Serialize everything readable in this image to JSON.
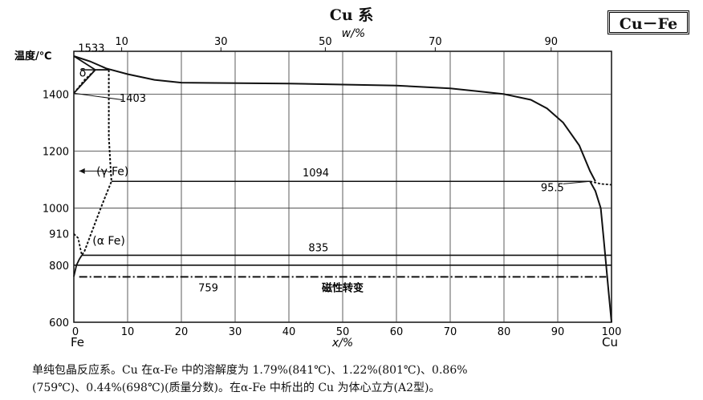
{
  "header": {
    "system_title": "Cu 系",
    "badge": "Cu－Fe"
  },
  "chart_data": {
    "type": "line",
    "top_axis": {
      "label": "w/%",
      "ticks": [
        10,
        30,
        50,
        70,
        90
      ]
    },
    "x_axis": {
      "label": "x/%",
      "range": [
        0,
        100
      ],
      "ticks": [
        "0",
        "10",
        "20",
        "30",
        "40",
        "50",
        "60",
        "70",
        "80",
        "90",
        "100"
      ],
      "left_end": "Fe",
      "right_end": "Cu"
    },
    "y_axis": {
      "label": "温度/℃",
      "range": [
        600,
        1550
      ],
      "ticks": [
        600,
        800,
        1000,
        1200,
        1400
      ],
      "extra_tick": 910
    },
    "annotations": {
      "t1533": "1533",
      "t1403": "1403",
      "delta": "δ",
      "gamma_fe": "(γ-Fe)",
      "alpha_fe": "(α Fe)",
      "t1094": "1094",
      "t95_5": "95.5",
      "t835": "835",
      "t759": "759",
      "magnetic": "磁性转变"
    },
    "isotherms": [
      {
        "name": "peritectic",
        "t": 1485,
        "x": [
          1.5,
          6.5
        ]
      },
      {
        "name": "eutectoid-upper",
        "t": 1094,
        "x": [
          7,
          96
        ]
      },
      {
        "name": "eutectoid-lower",
        "t": 835,
        "x": [
          1.5,
          100
        ]
      },
      {
        "name": "reference-800",
        "t": 800,
        "x": [
          0,
          100
        ]
      }
    ],
    "liquidus": [
      [
        0,
        1533
      ],
      [
        3,
        1515
      ],
      [
        6,
        1490
      ],
      [
        10,
        1470
      ],
      [
        15,
        1450
      ],
      [
        20,
        1440
      ],
      [
        40,
        1437
      ],
      [
        60,
        1430
      ],
      [
        70,
        1420
      ],
      [
        75,
        1410
      ],
      [
        80,
        1400
      ],
      [
        85,
        1380
      ],
      [
        88,
        1350
      ],
      [
        91,
        1300
      ],
      [
        94,
        1220
      ],
      [
        96,
        1130
      ],
      [
        97,
        1094
      ]
    ],
    "delta_solvus": [
      [
        0,
        1403
      ],
      [
        4,
        1485
      ]
    ],
    "delta_dashed": [
      [
        0,
        1403
      ],
      [
        2,
        1450
      ],
      [
        4,
        1485
      ]
    ],
    "solidus_upper": [
      [
        0,
        1533
      ],
      [
        4,
        1485
      ],
      [
        6.5,
        1485
      ]
    ],
    "gamma_boundary": [
      [
        6.5,
        1485
      ],
      [
        6.5,
        1400
      ],
      [
        6.5,
        1250
      ],
      [
        6.8,
        1150
      ],
      [
        7,
        1094
      ],
      [
        5,
        1000
      ],
      [
        3,
        900
      ],
      [
        2,
        850
      ],
      [
        1.5,
        835
      ]
    ],
    "alpha_910": [
      [
        0,
        910
      ],
      [
        0.8,
        895
      ],
      [
        1.2,
        860
      ],
      [
        1.5,
        835
      ]
    ],
    "alpha_left": [
      [
        0,
        760
      ],
      [
        0.5,
        800
      ],
      [
        1,
        820
      ],
      [
        1.5,
        835
      ]
    ],
    "cu_right": [
      [
        96,
        1094
      ],
      [
        97,
        1060
      ],
      [
        98,
        1000
      ],
      [
        98.5,
        900
      ],
      [
        99,
        800
      ],
      [
        99.5,
        700
      ],
      [
        100,
        600
      ]
    ],
    "cu_solvus_dashed": [
      [
        96,
        1094
      ],
      [
        98,
        1085
      ],
      [
        100,
        1082
      ]
    ],
    "magnetic_line": {
      "t": 759,
      "x": [
        1,
        99
      ]
    },
    "pointer_1403": [
      [
        0,
        1403
      ],
      [
        9,
        1380
      ]
    ],
    "pointer_95_5": [
      [
        91,
        1085
      ],
      [
        96,
        1094
      ]
    ]
  },
  "caption": {
    "line1": "单纯包晶反应系。Cu 在α-Fe 中的溶解度为 1.79%(841℃)、1.22%(801℃)、0.86%",
    "line2": "(759℃)、0.44%(698℃)(质量分数)。在α-Fe 中析出的 Cu 为体心立方(A2型)。"
  }
}
